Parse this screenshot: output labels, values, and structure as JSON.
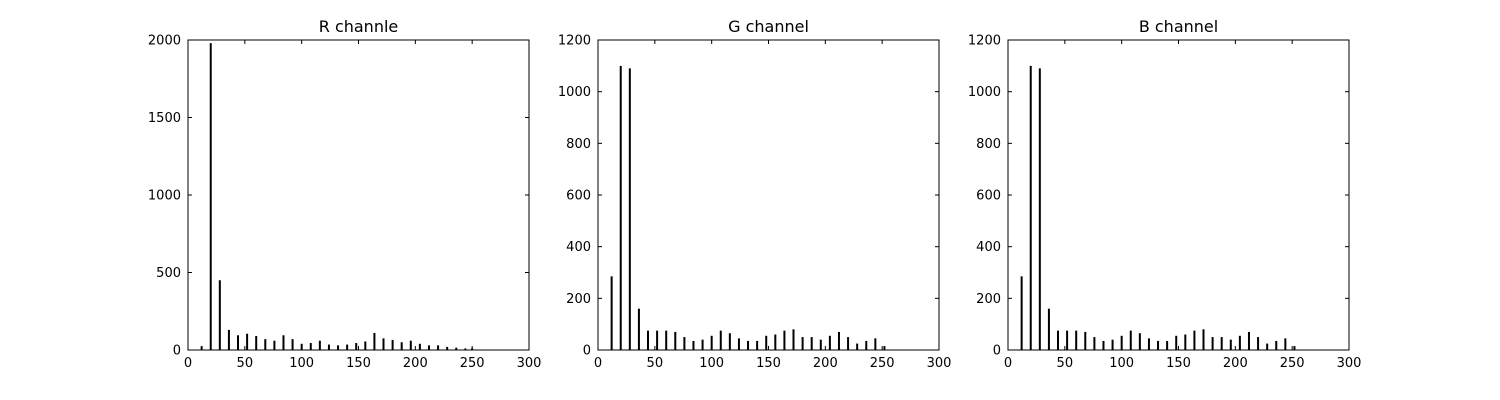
{
  "chart_data": [
    {
      "type": "bar",
      "title": "R channle",
      "xlabel": "",
      "ylabel": "",
      "xlim": [
        0,
        300
      ],
      "ylim": [
        0,
        2000
      ],
      "xticks": [
        "0",
        "50",
        "100",
        "150",
        "200",
        "250",
        "300"
      ],
      "yticks": [
        "0",
        "500",
        "1000",
        "1500",
        "2000"
      ],
      "grid": false,
      "x": [
        12,
        20,
        28,
        36,
        44,
        52,
        60,
        68,
        76,
        84,
        92,
        100,
        108,
        116,
        124,
        132,
        140,
        148,
        156,
        164,
        172,
        180,
        188,
        196,
        204,
        212,
        220,
        228,
        236,
        244,
        250
      ],
      "values": [
        25,
        1980,
        450,
        130,
        95,
        105,
        90,
        70,
        60,
        95,
        70,
        40,
        45,
        60,
        35,
        30,
        35,
        45,
        55,
        110,
        75,
        65,
        50,
        60,
        40,
        30,
        30,
        20,
        15,
        10,
        12
      ]
    },
    {
      "type": "bar",
      "title": "G channel",
      "xlabel": "",
      "ylabel": "",
      "xlim": [
        0,
        300
      ],
      "ylim": [
        0,
        1200
      ],
      "xticks": [
        "0",
        "50",
        "100",
        "150",
        "200",
        "250",
        "300"
      ],
      "yticks": [
        "0",
        "200",
        "400",
        "600",
        "800",
        "1000",
        "1200"
      ],
      "grid": false,
      "x": [
        12,
        20,
        28,
        36,
        44,
        52,
        60,
        68,
        76,
        84,
        92,
        100,
        108,
        116,
        124,
        132,
        140,
        148,
        156,
        164,
        172,
        180,
        188,
        196,
        204,
        212,
        220,
        228,
        236,
        244,
        252
      ],
      "values": [
        285,
        1100,
        1090,
        160,
        75,
        75,
        75,
        70,
        50,
        35,
        40,
        55,
        75,
        65,
        45,
        35,
        35,
        55,
        60,
        75,
        80,
        50,
        50,
        40,
        55,
        70,
        50,
        25,
        35,
        45,
        15
      ]
    },
    {
      "type": "bar",
      "title": "B channel",
      "xlabel": "",
      "ylabel": "",
      "xlim": [
        0,
        300
      ],
      "ylim": [
        0,
        1200
      ],
      "xticks": [
        "0",
        "50",
        "100",
        "150",
        "200",
        "250",
        "300"
      ],
      "yticks": [
        "0",
        "200",
        "400",
        "600",
        "800",
        "1000",
        "1200"
      ],
      "grid": false,
      "x": [
        12,
        20,
        28,
        36,
        44,
        52,
        60,
        68,
        76,
        84,
        92,
        100,
        108,
        116,
        124,
        132,
        140,
        148,
        156,
        164,
        172,
        180,
        188,
        196,
        204,
        212,
        220,
        228,
        236,
        244,
        252
      ],
      "values": [
        285,
        1100,
        1090,
        160,
        75,
        75,
        75,
        70,
        50,
        35,
        40,
        55,
        75,
        65,
        45,
        35,
        35,
        55,
        60,
        75,
        80,
        50,
        50,
        40,
        55,
        70,
        50,
        25,
        35,
        45,
        15
      ]
    }
  ]
}
